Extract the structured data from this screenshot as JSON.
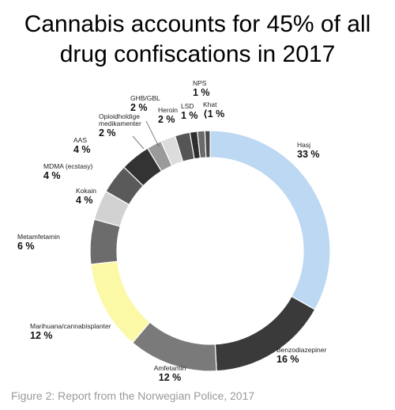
{
  "chart_data": {
    "type": "pie",
    "variant": "donut",
    "title_lines": [
      "Cannabis accounts for 45% of all",
      "drug confiscations in 2017"
    ],
    "slices": [
      {
        "name": "Hasj",
        "label": "33 %",
        "value": 33,
        "color": "#bcd8f2"
      },
      {
        "name": "Benzodiazepiner",
        "label": "16 %",
        "value": 16,
        "color": "#3a3a3a"
      },
      {
        "name": "Amfetamin",
        "label": "12 %",
        "value": 12,
        "color": "#7a7a7a"
      },
      {
        "name": "Marihuana/cannabisplanter",
        "label": "12 %",
        "value": 12,
        "color": "#fbf8a6"
      },
      {
        "name": "Metamfetamin",
        "label": "6 %",
        "value": 6,
        "color": "#6c6c6c"
      },
      {
        "name": "Kokain",
        "label": "4 %",
        "value": 4,
        "color": "#d2d2d2"
      },
      {
        "name": "MDMA (ecstasy)",
        "label": "4 %",
        "value": 4,
        "color": "#5a5a5a"
      },
      {
        "name": "AAS",
        "label": "4 %",
        "value": 4,
        "color": "#333333"
      },
      {
        "name": "Opioidholdige\nmedikamenter",
        "label": "2 %",
        "value": 2,
        "color": "#9a9a9a"
      },
      {
        "name": "GHB/GBL",
        "label": "2 %",
        "value": 2,
        "color": "#dcdcdc"
      },
      {
        "name": "Heroin",
        "label": "2 %",
        "value": 2,
        "color": "#555555"
      },
      {
        "name": "LSD",
        "label": "1 %",
        "value": 1,
        "color": "#2e2e2e"
      },
      {
        "name": "NPS",
        "label": "1 %",
        "value": 1,
        "color": "#6a6a6a"
      },
      {
        "name": "Khat",
        "label": "⟨1 %",
        "value": 0.7,
        "color": "#4a4a4a"
      }
    ]
  },
  "caption": "Figure 2: Report from the Norwegian Police, 2017"
}
